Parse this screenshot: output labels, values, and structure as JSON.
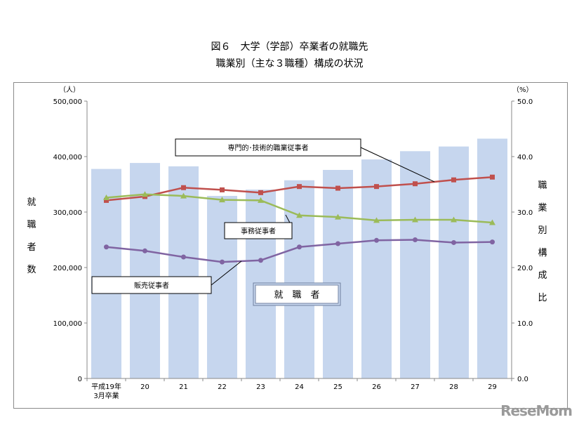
{
  "title_line1": "図６　大学（学部）卒業者の就職先",
  "title_line2": "職業別（主な３職種）構成の状況",
  "watermark": "ReseMom",
  "chart_data": {
    "type": "bar",
    "categories": [
      "平成19年\n3月卒業",
      "20",
      "21",
      "22",
      "23",
      "24",
      "25",
      "26",
      "27",
      "28",
      "29"
    ],
    "left_axis": {
      "unit": "（人）",
      "label": "就職者数",
      "ylim": [
        0,
        500000
      ],
      "ticks": [
        "0",
        "100,000",
        "200,000",
        "300,000",
        "400,000",
        "500,000"
      ]
    },
    "right_axis": {
      "unit": "（%）",
      "label": "職業別構成比",
      "ylim": [
        0,
        50
      ],
      "ticks": [
        "0.0",
        "10.0",
        "20.0",
        "30.0",
        "40.0",
        "50.0"
      ]
    },
    "grid": false,
    "series": [
      {
        "name": "就職者",
        "type": "bar",
        "axis": "left",
        "color": "#c6d6ee",
        "values": [
          377734,
          388480,
          382434,
          329132,
          340546,
          357285,
          375959,
          394845,
          409759,
          418163,
          432333
        ]
      },
      {
        "name": "専門的・技術的職業従事者",
        "type": "line",
        "axis": "right",
        "color": "#c0504d",
        "marker": "square",
        "values": [
          32.1,
          32.8,
          34.4,
          34.0,
          33.5,
          34.6,
          34.3,
          34.6,
          35.1,
          35.8,
          36.3
        ]
      },
      {
        "name": "事務従事者",
        "type": "line",
        "axis": "right",
        "color": "#9bbb59",
        "marker": "triangle",
        "values": [
          32.6,
          33.2,
          32.9,
          32.2,
          32.1,
          29.4,
          29.1,
          28.5,
          28.6,
          28.6,
          28.1
        ]
      },
      {
        "name": "販売従事者",
        "type": "line",
        "axis": "right",
        "color": "#8064a2",
        "marker": "circle",
        "values": [
          23.7,
          23.0,
          21.9,
          21.0,
          21.3,
          23.7,
          24.3,
          24.9,
          25.0,
          24.5,
          24.6
        ]
      }
    ],
    "annotations": [
      {
        "text": "専門的･技術的職業従事者",
        "series": 1
      },
      {
        "text": "事務従事者",
        "series": 2
      },
      {
        "text": "販売従事者",
        "series": 3
      },
      {
        "text": "就　職　者",
        "series": 0
      }
    ]
  }
}
